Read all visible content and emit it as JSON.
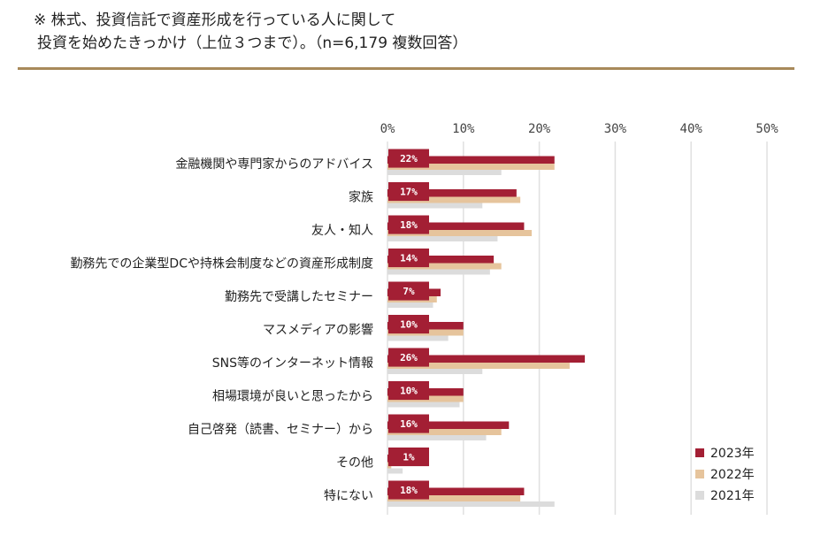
{
  "header": {
    "line1": "※ 株式、投資信託で資産形成を行っている人に関して",
    "line2": "投資を始めたきっかけ（上位３つまで）。（n=6,179 複数回答）"
  },
  "chart_data": {
    "type": "bar",
    "orientation": "horizontal",
    "categories": [
      "金融機関や専門家からのアドバイス",
      "家族",
      "友人・知人",
      "勤務先での企業型DCや持株会制度などの資産形成制度",
      "勤務先で受講したセミナー",
      "マスメディアの影響",
      "SNS等のインターネット情報",
      "相場環境が良いと思ったから",
      "自己啓発（読書、セミナー）から",
      "その他",
      "特にない"
    ],
    "series": [
      {
        "name": "2023年",
        "color": "#a31f34",
        "values": [
          22,
          17,
          18,
          14,
          7,
          10,
          26,
          10,
          16,
          1,
          18
        ]
      },
      {
        "name": "2022年",
        "color": "#e6c49c",
        "values": [
          22,
          17.5,
          19,
          15,
          6.5,
          10,
          24,
          10,
          15,
          0.5,
          17.5
        ]
      },
      {
        "name": "2021年",
        "color": "#dcdcdc",
        "values": [
          15,
          12.5,
          14.5,
          13.5,
          6,
          8,
          12.5,
          9.5,
          13,
          2,
          22
        ]
      }
    ],
    "data_labels": [
      "22%",
      "17%",
      "18%",
      "14%",
      "7%",
      "10%",
      "26%",
      "10%",
      "16%",
      "1%",
      "18%"
    ],
    "x_ticks": [
      "0%",
      "10%",
      "20%",
      "30%",
      "40%",
      "50%"
    ],
    "xlim": [
      0,
      50
    ],
    "grid": true,
    "legend_position": "bottom-right"
  }
}
